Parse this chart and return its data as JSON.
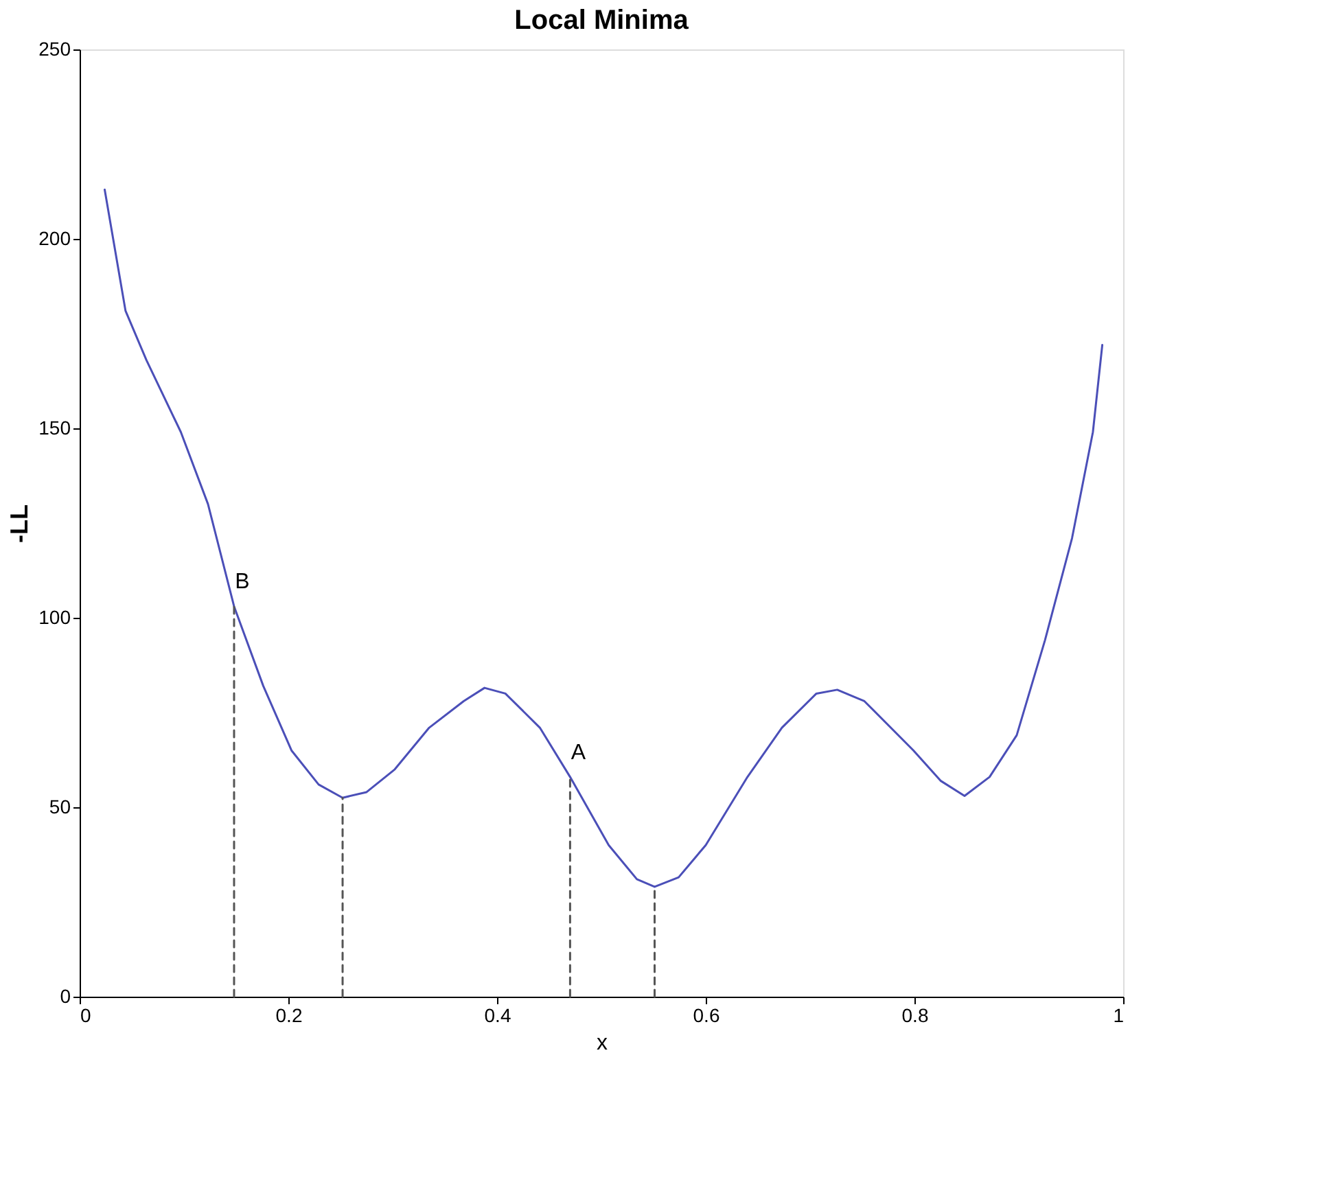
{
  "chart_data": {
    "type": "line",
    "title": "Local Minima",
    "xlabel": "x",
    "ylabel": "-LL",
    "xlim": [
      0,
      1
    ],
    "xticks": [
      0,
      0.2,
      0.4,
      0.6,
      0.8,
      1
    ],
    "ylim": [
      0,
      250
    ],
    "yticks": [
      0,
      50,
      100,
      150,
      200,
      250
    ],
    "grid": false,
    "legend": false,
    "series": [
      {
        "color": "#4b4fb8",
        "line_style": "solid",
        "x": [
          0.024,
          0.044,
          0.064,
          0.097,
          0.123,
          0.148,
          0.176,
          0.203,
          0.229,
          0.252,
          0.275,
          0.302,
          0.335,
          0.368,
          0.388,
          0.408,
          0.441,
          0.47,
          0.507,
          0.534,
          0.551,
          0.574,
          0.6,
          0.64,
          0.673,
          0.706,
          0.726,
          0.752,
          0.799,
          0.825,
          0.848,
          0.872,
          0.898,
          0.925,
          0.951,
          0.971,
          0.98
        ],
        "values": [
          213,
          181,
          168,
          149,
          130,
          103,
          82,
          65,
          56,
          52.5,
          54,
          60,
          71,
          78,
          81.5,
          80,
          71,
          58,
          40,
          31,
          29,
          31.5,
          40,
          58,
          71,
          80,
          81,
          78,
          65,
          57,
          53,
          58,
          69,
          94,
          121,
          149,
          172
        ]
      },
      {
        "color": "#555555",
        "line_style": "dashed",
        "x": [
          0.148,
          0.148
        ],
        "values": [
          0,
          103
        ]
      },
      {
        "color": "#555555",
        "line_style": "dashed",
        "x": [
          0.252,
          0.252
        ],
        "values": [
          0,
          52.5
        ]
      },
      {
        "color": "#555555",
        "line_style": "dashed",
        "x": [
          0.47,
          0.47
        ],
        "values": [
          0,
          58
        ]
      },
      {
        "color": "#555555",
        "line_style": "dashed",
        "x": [
          0.551,
          0.551
        ],
        "values": [
          0,
          29
        ]
      }
    ],
    "annotations": [
      {
        "text": "B",
        "x": 0.148,
        "y": 103
      },
      {
        "text": "A",
        "x": 0.47,
        "y": 58
      }
    ]
  }
}
